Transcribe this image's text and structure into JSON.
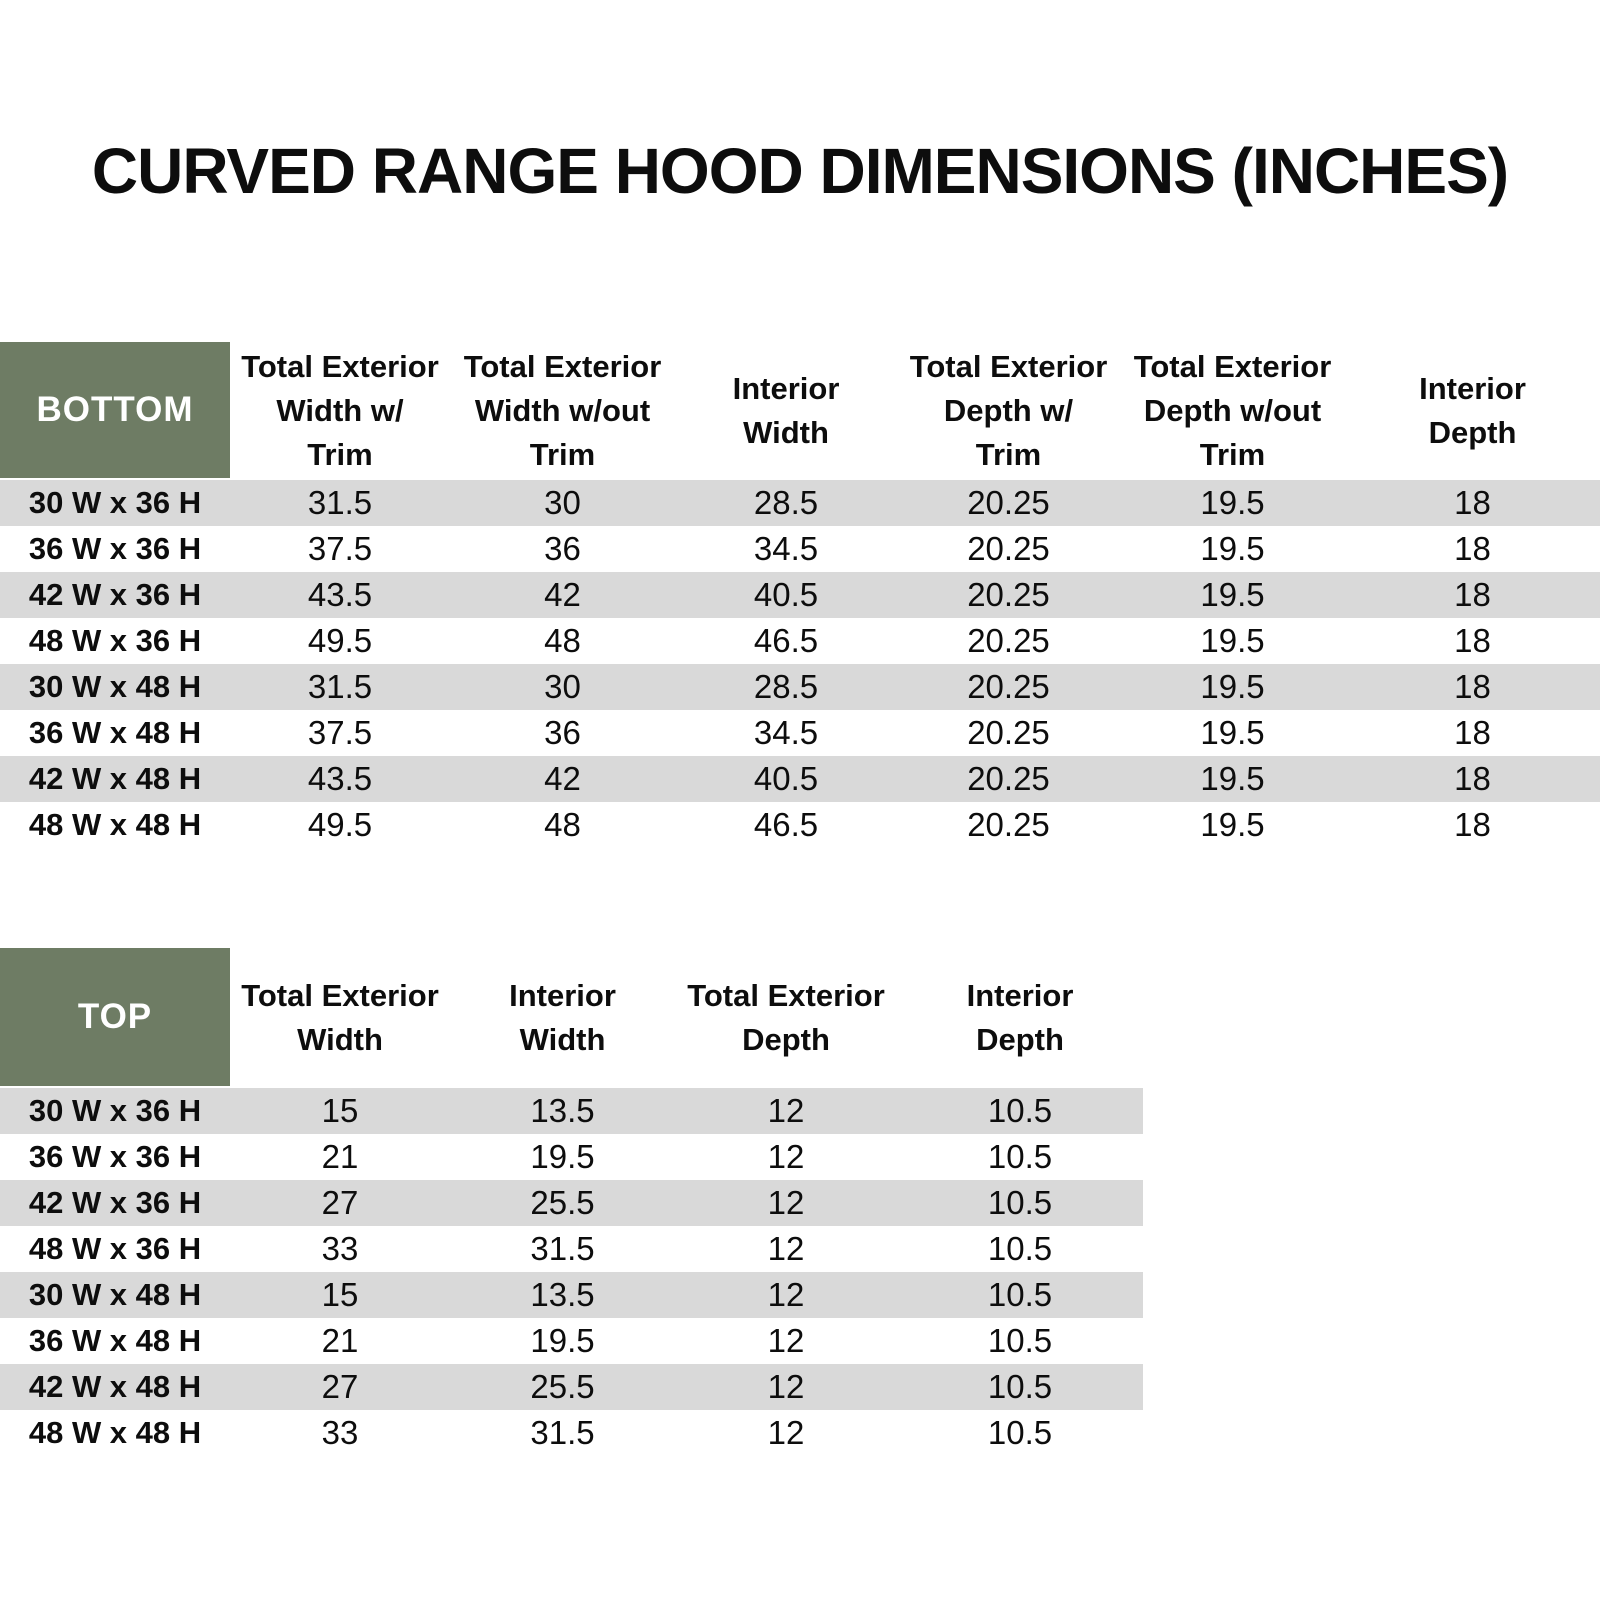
{
  "title": "CURVED RANGE HOOD DIMENSIONS (INCHES)",
  "colors": {
    "header_green": "#6E7C64",
    "stripe_gray": "#D9D9D9",
    "text_black": "#0d0d0d",
    "corner_text_white": "#ffffff"
  },
  "bottom_table": {
    "corner_label": "BOTTOM",
    "columns": [
      "Total Exterior\nWidth w/\nTrim",
      "Total Exterior\nWidth w/out\nTrim",
      "Interior\nWidth",
      "Total Exterior\nDepth w/\nTrim",
      "Total Exterior\nDepth w/out\nTrim",
      "Interior\nDepth"
    ],
    "rows": [
      {
        "label": "30 W x 36 H",
        "values": [
          "31.5",
          "30",
          "28.5",
          "20.25",
          "19.5",
          "18"
        ]
      },
      {
        "label": "36 W x 36 H",
        "values": [
          "37.5",
          "36",
          "34.5",
          "20.25",
          "19.5",
          "18"
        ]
      },
      {
        "label": "42 W x 36 H",
        "values": [
          "43.5",
          "42",
          "40.5",
          "20.25",
          "19.5",
          "18"
        ]
      },
      {
        "label": "48 W x 36 H",
        "values": [
          "49.5",
          "48",
          "46.5",
          "20.25",
          "19.5",
          "18"
        ]
      },
      {
        "label": "30 W x 48 H",
        "values": [
          "31.5",
          "30",
          "28.5",
          "20.25",
          "19.5",
          "18"
        ]
      },
      {
        "label": "36 W x 48 H",
        "values": [
          "37.5",
          "36",
          "34.5",
          "20.25",
          "19.5",
          "18"
        ]
      },
      {
        "label": "42 W x 48 H",
        "values": [
          "43.5",
          "42",
          "40.5",
          "20.25",
          "19.5",
          "18"
        ]
      },
      {
        "label": "48 W x 48 H",
        "values": [
          "49.5",
          "48",
          "46.5",
          "20.25",
          "19.5",
          "18"
        ]
      }
    ]
  },
  "top_table": {
    "corner_label": "TOP",
    "columns": [
      "Total Exterior\nWidth",
      "Interior\nWidth",
      "Total Exterior\nDepth",
      "Interior\nDepth"
    ],
    "rows": [
      {
        "label": "30 W x 36 H",
        "values": [
          "15",
          "13.5",
          "12",
          "10.5"
        ]
      },
      {
        "label": "36 W x 36 H",
        "values": [
          "21",
          "19.5",
          "12",
          "10.5"
        ]
      },
      {
        "label": "42 W x 36 H",
        "values": [
          "27",
          "25.5",
          "12",
          "10.5"
        ]
      },
      {
        "label": "48 W x 36 H",
        "values": [
          "33",
          "31.5",
          "12",
          "10.5"
        ]
      },
      {
        "label": "30 W x 48 H",
        "values": [
          "15",
          "13.5",
          "12",
          "10.5"
        ]
      },
      {
        "label": "36 W x 48 H",
        "values": [
          "21",
          "19.5",
          "12",
          "10.5"
        ]
      },
      {
        "label": "42 W x 48 H",
        "values": [
          "27",
          "25.5",
          "12",
          "10.5"
        ]
      },
      {
        "label": "48 W x 48 H",
        "values": [
          "33",
          "31.5",
          "12",
          "10.5"
        ]
      }
    ]
  }
}
